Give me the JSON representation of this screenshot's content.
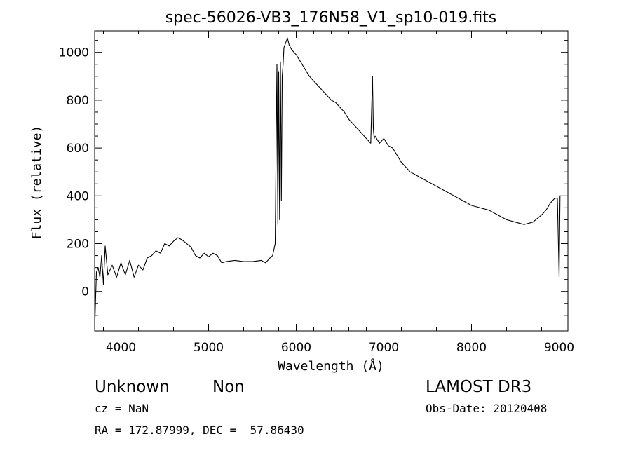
{
  "chart_data": {
    "type": "line",
    "title": "spec-56026-VB3_176N58_V1_sp10-019.fits",
    "xlabel": "Wavelength (Å)",
    "ylabel": "Flux (relative)",
    "xlim": [
      3700,
      9100
    ],
    "ylim": [
      -165,
      1090
    ],
    "xticks": [
      4000,
      5000,
      6000,
      7000,
      8000,
      9000
    ],
    "yticks": [
      0,
      200,
      400,
      600,
      800,
      1000
    ],
    "grid": false,
    "series": [
      {
        "x": [
          3700,
          3720,
          3740,
          3760,
          3780,
          3800,
          3820,
          3850,
          3900,
          3950,
          4000,
          4050,
          4100,
          4150,
          4200,
          4250,
          4300,
          4350,
          4400,
          4450,
          4500,
          4550,
          4600,
          4650,
          4700,
          4750,
          4800,
          4850,
          4900,
          4950,
          5000,
          5050,
          5100,
          5150,
          5200,
          5300,
          5400,
          5500,
          5600,
          5650,
          5700,
          5730,
          5760,
          5780,
          5790,
          5800,
          5810,
          5820,
          5830,
          5840,
          5850,
          5860,
          5880,
          5900,
          5920,
          5950,
          6000,
          6050,
          6100,
          6150,
          6200,
          6250,
          6300,
          6350,
          6400,
          6450,
          6500,
          6550,
          6600,
          6650,
          6700,
          6750,
          6800,
          6850,
          6870,
          6880,
          6890,
          6900,
          6950,
          7000,
          7050,
          7100,
          7150,
          7200,
          7250,
          7300,
          7400,
          7500,
          7600,
          7700,
          7800,
          7900,
          8000,
          8100,
          8200,
          8300,
          8400,
          8500,
          8600,
          8700,
          8800,
          8850,
          8900,
          8950,
          8980,
          9000,
          9010,
          9020
        ],
        "y": [
          -160,
          80,
          100,
          60,
          150,
          30,
          190,
          70,
          110,
          60,
          120,
          70,
          130,
          60,
          110,
          90,
          140,
          150,
          170,
          160,
          200,
          190,
          210,
          225,
          215,
          200,
          185,
          150,
          140,
          160,
          145,
          160,
          150,
          120,
          125,
          130,
          125,
          125,
          130,
          120,
          140,
          150,
          200,
          950,
          280,
          920,
          300,
          960,
          380,
          900,
          950,
          1020,
          1040,
          1060,
          1030,
          1010,
          990,
          960,
          930,
          900,
          880,
          860,
          840,
          820,
          800,
          790,
          770,
          750,
          720,
          700,
          680,
          660,
          640,
          620,
          900,
          680,
          640,
          650,
          620,
          640,
          610,
          600,
          570,
          540,
          520,
          500,
          480,
          460,
          440,
          420,
          400,
          380,
          360,
          350,
          340,
          320,
          300,
          290,
          280,
          290,
          320,
          340,
          370,
          390,
          390,
          60,
          400,
          400
        ]
      }
    ]
  },
  "annotations": {
    "object_type": "Unknown",
    "object_subtype": "Non",
    "cz": "cz = NaN",
    "coords": "RA = 172.87999, DEC =  57.86430",
    "survey": "LAMOST DR3",
    "obs_date": "Obs-Date: 20120408"
  }
}
